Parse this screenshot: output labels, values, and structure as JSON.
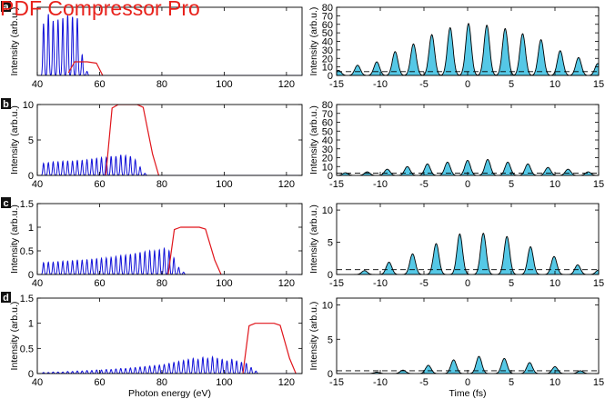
{
  "watermark": "PDF Compressor Pro",
  "colors": {
    "spectrum": "#1010d8",
    "filter": "#e0151b",
    "pulse_fill": "#55c8e6",
    "pulse_line": "#000000",
    "axis": "#000000"
  },
  "chart_data": [
    {
      "type": "line",
      "panel": "a",
      "side": "spectrum",
      "ylabel": "Intensity (arb.u.)",
      "xlabel": "",
      "xlim": [
        40,
        125
      ],
      "ylim": null,
      "xticks": [
        40,
        60,
        80,
        100,
        120
      ],
      "yticks": [],
      "series": [
        {
          "kind": "harmonics",
          "start": 42,
          "spacing": 1.55,
          "peaks": [
            38,
            45,
            40,
            41,
            42,
            44,
            43,
            42,
            15,
            3
          ]
        },
        {
          "kind": "filter",
          "x": [
            50,
            52,
            56,
            59,
            61
          ],
          "y": [
            2,
            10,
            10,
            9,
            0
          ]
        }
      ]
    },
    {
      "type": "line",
      "panel": "b",
      "side": "spectrum",
      "ylabel": "Intensity (arb.u.)",
      "xlabel": "",
      "xlim": [
        40,
        125
      ],
      "ylim": [
        0,
        10
      ],
      "xticks": [
        40,
        60,
        80,
        100,
        120
      ],
      "yticks": [
        0,
        5,
        10
      ],
      "series": [
        {
          "kind": "harmonics",
          "start": 42,
          "spacing": 1.55,
          "peaks": [
            1.7,
            1.8,
            1.9,
            1.9,
            2.0,
            2.0,
            2.0,
            2.1,
            2.1,
            2.2,
            2.3,
            2.4,
            2.5,
            2.5,
            2.7,
            2.7,
            2.9,
            2.8,
            2.7,
            2.2,
            1.2,
            0.3
          ]
        },
        {
          "kind": "filter",
          "x": [
            62,
            64,
            66,
            72,
            74,
            77,
            79
          ],
          "y": [
            0,
            9.5,
            10,
            10,
            9.6,
            3,
            0
          ]
        }
      ]
    },
    {
      "type": "line",
      "panel": "c",
      "side": "spectrum",
      "ylabel": "Intensity (arb.u.)",
      "xlabel": "",
      "xlim": [
        40,
        125
      ],
      "ylim": [
        0,
        1.5
      ],
      "xticks": [
        40,
        60,
        80,
        100,
        120
      ],
      "yticks": [
        0,
        0.5,
        1,
        1.5
      ],
      "series": [
        {
          "kind": "harmonics",
          "start": 42,
          "spacing": 1.55,
          "peaks": [
            0.25,
            0.26,
            0.26,
            0.27,
            0.28,
            0.28,
            0.29,
            0.3,
            0.3,
            0.31,
            0.32,
            0.33,
            0.34,
            0.35,
            0.36,
            0.38,
            0.4,
            0.41,
            0.43,
            0.45,
            0.47,
            0.48,
            0.5,
            0.5,
            0.52,
            0.55,
            0.5,
            0.35,
            0.15,
            0.05
          ]
        },
        {
          "kind": "filter",
          "x": [
            82,
            84,
            86,
            92,
            94,
            97,
            99
          ],
          "y": [
            0,
            0.95,
            1,
            1,
            0.96,
            0.3,
            0
          ]
        }
      ]
    },
    {
      "type": "line",
      "panel": "d",
      "side": "spectrum",
      "ylabel": "Intensity (arb.u.)",
      "xlabel": "Photon energy (eV)",
      "xlim": [
        40,
        125
      ],
      "ylim": [
        0,
        1.5
      ],
      "xticks": [
        40,
        60,
        80,
        100,
        120
      ],
      "yticks": [
        0,
        0.5,
        1,
        1.5
      ],
      "series": [
        {
          "kind": "harmonics",
          "start": 42,
          "spacing": 1.55,
          "peaks": [
            0.02,
            0.02,
            0.03,
            0.03,
            0.03,
            0.04,
            0.04,
            0.05,
            0.05,
            0.06,
            0.06,
            0.07,
            0.07,
            0.08,
            0.08,
            0.09,
            0.1,
            0.1,
            0.11,
            0.12,
            0.13,
            0.14,
            0.15,
            0.16,
            0.17,
            0.18,
            0.2,
            0.22,
            0.24,
            0.26,
            0.28,
            0.3,
            0.28,
            0.32,
            0.3,
            0.33,
            0.3,
            0.28,
            0.25,
            0.28,
            0.25,
            0.22,
            0.2,
            0.12,
            0.05
          ]
        },
        {
          "kind": "filter",
          "x": [
            106,
            108,
            110,
            116,
            118,
            121,
            123
          ],
          "y": [
            0,
            0.95,
            1,
            1,
            0.96,
            0.3,
            0
          ]
        }
      ]
    },
    {
      "type": "area",
      "panel": "a",
      "side": "pulse",
      "ylabel": "Intensity (arb.u.)",
      "xlabel": "",
      "xlim": [
        -15,
        15
      ],
      "ylim": [
        0,
        80
      ],
      "xticks": [
        -15,
        -10,
        -5,
        0,
        5,
        10,
        15
      ],
      "yticks": [
        0,
        10,
        20,
        30,
        40,
        50,
        60,
        70,
        80
      ],
      "baseline": 4.5,
      "peaks": {
        "x": [
          -14.8,
          -12.6,
          -10.4,
          -8.3,
          -6.2,
          -4.1,
          -2.0,
          0.1,
          2.2,
          4.3,
          6.3,
          8.4,
          10.6,
          12.7,
          14.9
        ],
        "y": [
          6,
          12,
          16,
          28,
          37,
          48,
          56,
          61,
          59,
          55,
          49,
          42,
          29,
          21,
          14
        ]
      }
    },
    {
      "type": "area",
      "panel": "b",
      "side": "pulse",
      "ylabel": "Intensity (arb.u.)",
      "xlabel": "",
      "xlim": [
        -15,
        15
      ],
      "ylim": [
        0,
        80
      ],
      "xticks": [
        -15,
        -10,
        -5,
        0,
        5,
        10,
        15
      ],
      "yticks": [
        0,
        10,
        20,
        30,
        40,
        50,
        60,
        70,
        80
      ],
      "baseline": 2.5,
      "peaks": {
        "x": [
          -14.0,
          -11.5,
          -9.2,
          -6.9,
          -4.6,
          -2.3,
          0.0,
          2.3,
          4.6,
          6.9,
          9.2,
          11.5,
          13.8
        ],
        "y": [
          3,
          4,
          7,
          10,
          13,
          15,
          17,
          18,
          15,
          13,
          9,
          7,
          4
        ]
      }
    },
    {
      "type": "area",
      "panel": "c",
      "side": "pulse",
      "ylabel": "Intensity (arb.u.)",
      "xlabel": "",
      "xlim": [
        -15,
        15
      ],
      "ylim": [
        0,
        11
      ],
      "xticks": [
        -15,
        -10,
        -5,
        0,
        5,
        10,
        15
      ],
      "yticks": [
        0,
        5,
        10
      ],
      "baseline": 0.75,
      "peaks": {
        "x": [
          -11.8,
          -9.0,
          -6.3,
          -3.6,
          -0.9,
          1.8,
          4.5,
          7.2,
          9.9,
          12.6,
          15.0
        ],
        "y": [
          0.6,
          1.9,
          3.2,
          4.8,
          6.3,
          6.4,
          5.9,
          4.3,
          2.8,
          1.5,
          0.7
        ]
      }
    },
    {
      "type": "area",
      "panel": "d",
      "side": "pulse",
      "ylabel": "Intensity (arb.u.)",
      "xlabel": "Time (fs)",
      "xlim": [
        -15,
        15
      ],
      "ylim": [
        0,
        11
      ],
      "xticks": [
        -15,
        -10,
        -5,
        0,
        5,
        10,
        15
      ],
      "yticks": [
        0,
        5,
        10
      ],
      "baseline": 0.4,
      "peaks": {
        "x": [
          -10.4,
          -7.4,
          -4.5,
          -1.6,
          1.3,
          4.2,
          7.1,
          10.0,
          12.9
        ],
        "y": [
          0.2,
          0.5,
          1.2,
          2.0,
          2.5,
          2.2,
          1.6,
          1.0,
          0.4
        ]
      }
    }
  ]
}
